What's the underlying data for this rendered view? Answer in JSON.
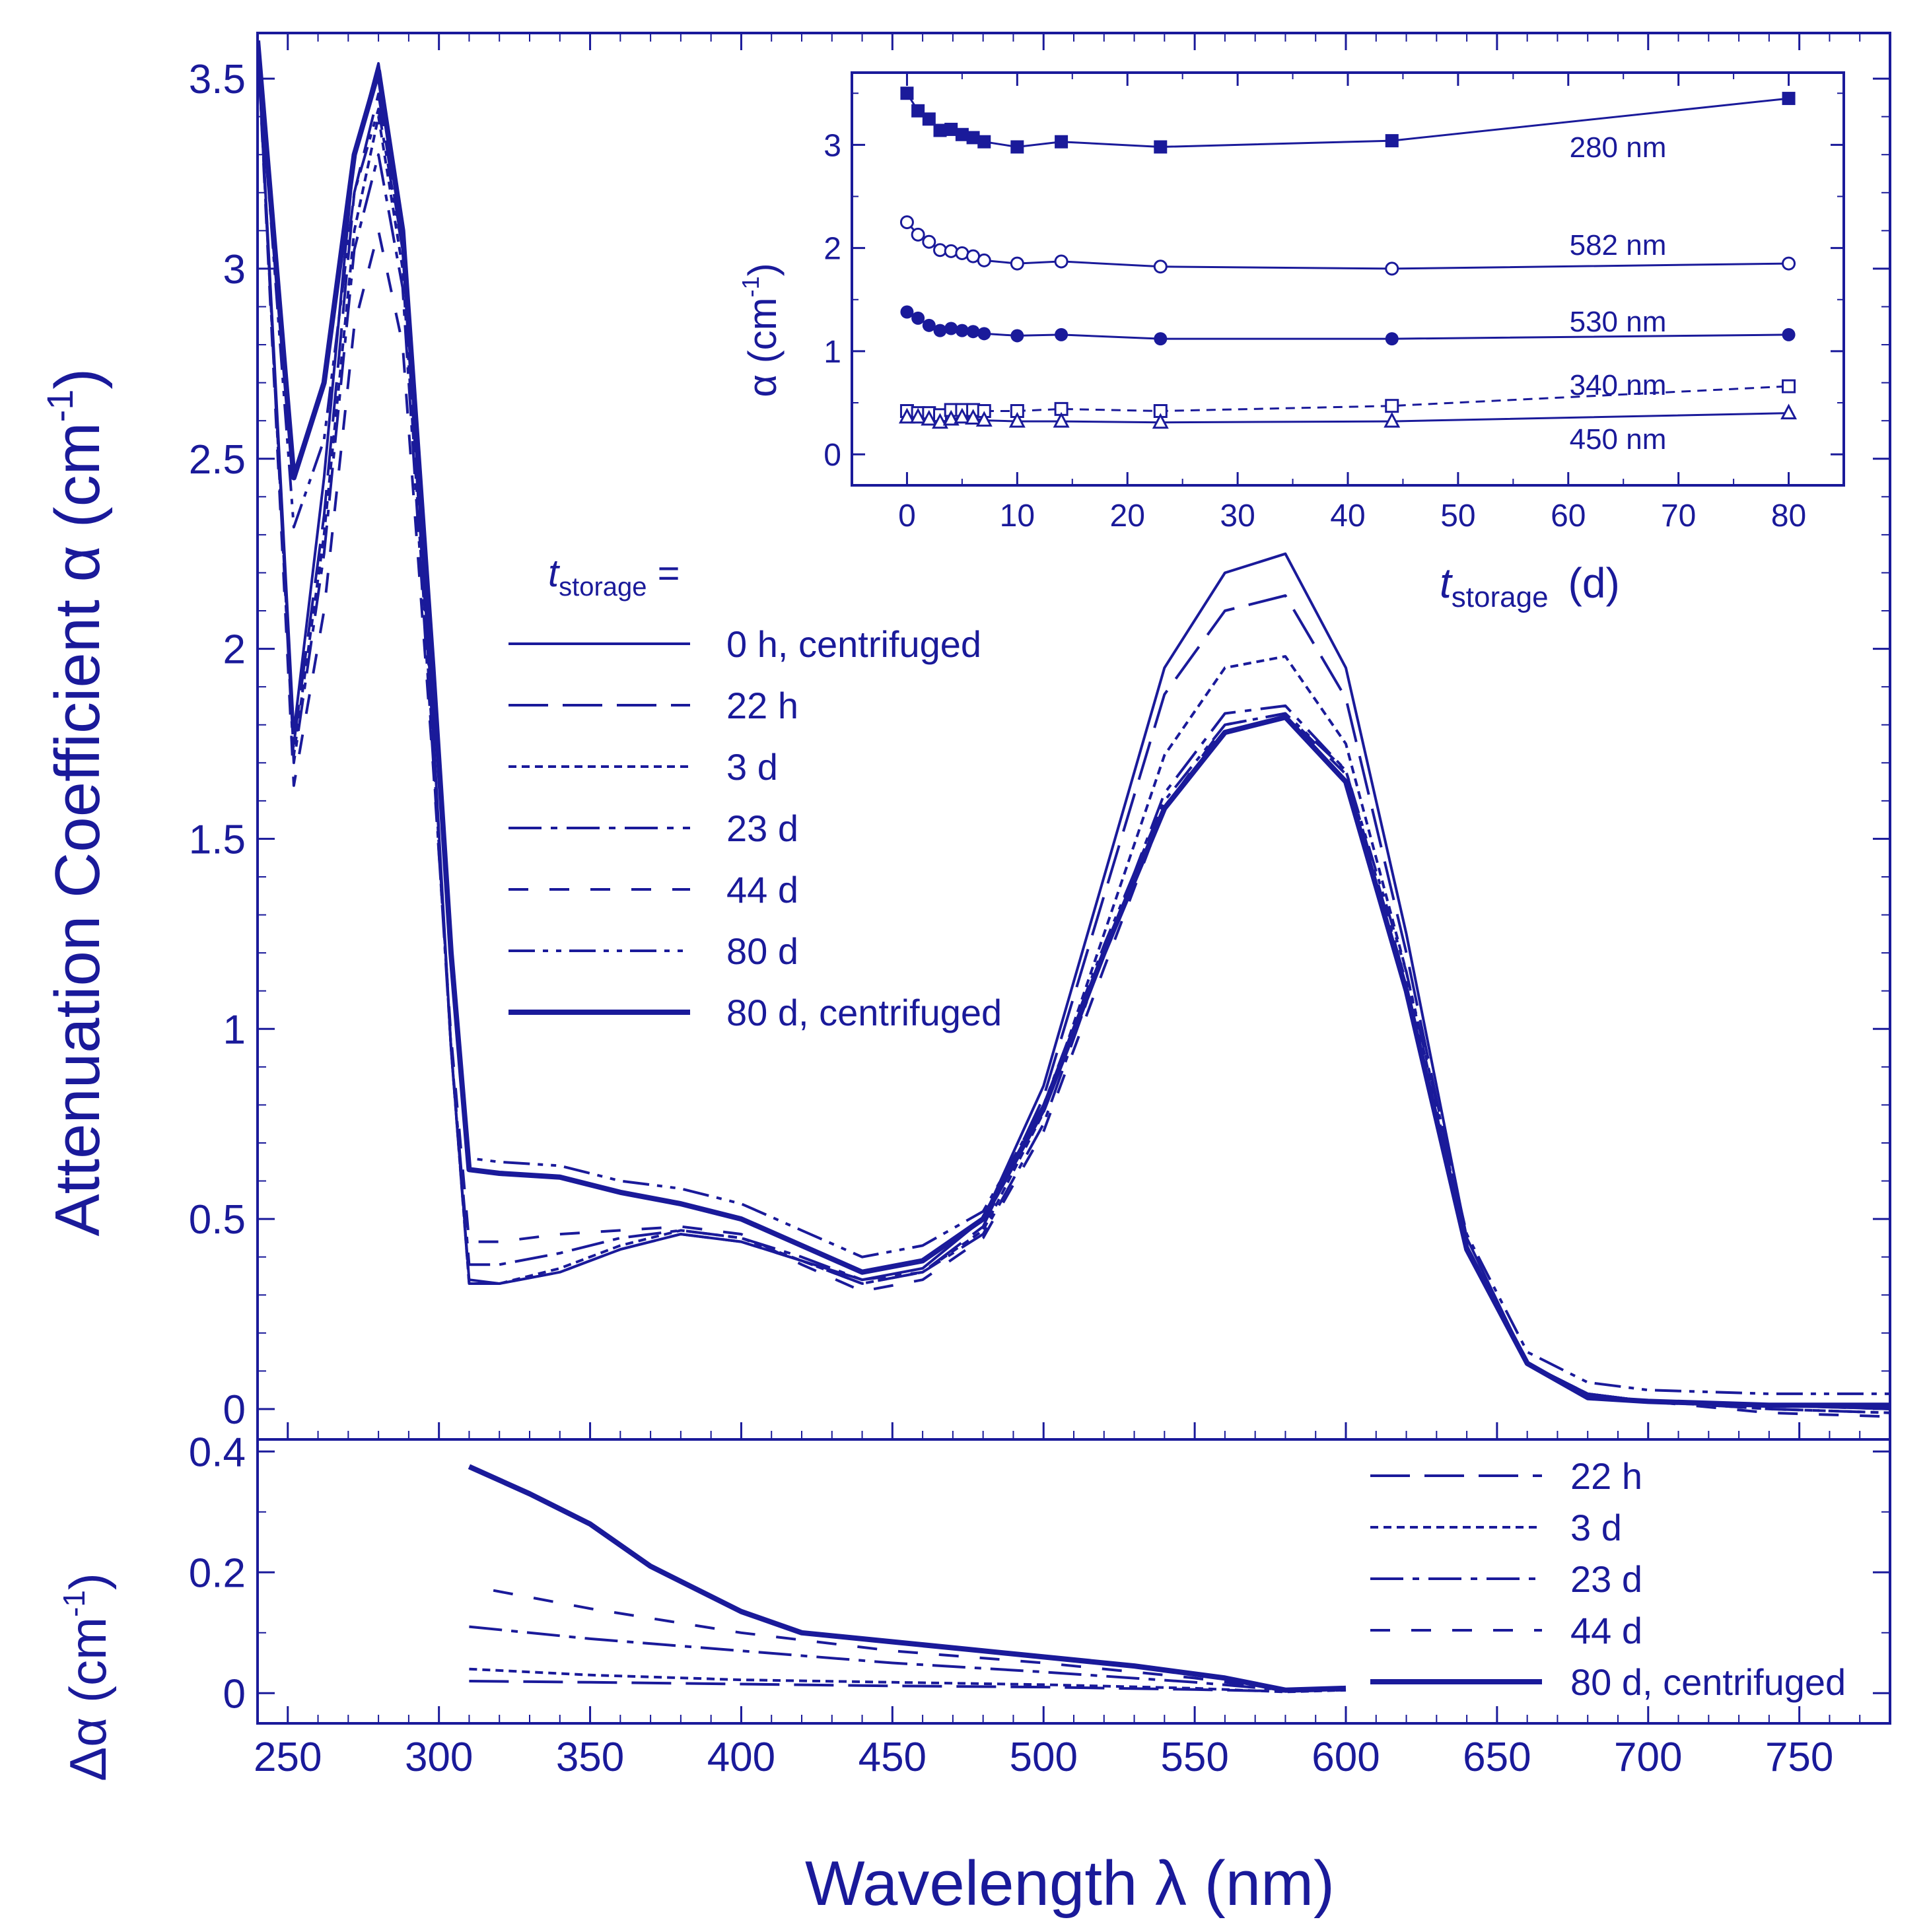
{
  "colors": {
    "ink": "#1a1a9a",
    "background": "#ffffff"
  },
  "chart_data": [
    {
      "id": "main",
      "type": "line",
      "xlabel": "Wavelength  λ  (nm)",
      "ylabel": "Attenuation Coefficient  α  (cm",
      "ylabel_sup": "-1",
      "ylabel_close": ")",
      "xlim": [
        240,
        780
      ],
      "ylim": [
        -0.08,
        3.62
      ],
      "xticks": [
        250,
        300,
        350,
        400,
        450,
        500,
        550,
        600,
        650,
        700,
        750
      ],
      "xtick_labels": [
        "250",
        "300",
        "350",
        "400",
        "450",
        "500",
        "550",
        "600",
        "650",
        "700",
        "750"
      ],
      "yticks": [
        0,
        0.5,
        1,
        1.5,
        2,
        2.5,
        3,
        3.5
      ],
      "ytick_labels": [
        "0",
        "0.5",
        "1",
        "1.5",
        "2",
        "2.5",
        "3",
        "3.5"
      ],
      "legend_title_main": "t",
      "legend_title_sub": "storage",
      "legend_title_eq": " =",
      "legend_position": "center",
      "series": [
        {
          "name": "0 h, centrifuged",
          "dash": "solid",
          "width": 4,
          "x": [
            240,
            252,
            262,
            272,
            280,
            288,
            298,
            304,
            310,
            320,
            340,
            360,
            380,
            400,
            420,
            440,
            460,
            480,
            500,
            520,
            540,
            560,
            580,
            600,
            620,
            640,
            660,
            680,
            700,
            740,
            780
          ],
          "y": [
            3.6,
            1.78,
            2.45,
            3.3,
            3.54,
            3.1,
            1.8,
            0.95,
            0.34,
            0.33,
            0.36,
            0.42,
            0.46,
            0.44,
            0.39,
            0.34,
            0.37,
            0.5,
            0.85,
            1.4,
            1.95,
            2.2,
            2.25,
            1.95,
            1.25,
            0.45,
            0.12,
            0.04,
            0.02,
            0.01,
            0.0
          ]
        },
        {
          "name": "22 h",
          "dash": "long-dash",
          "width": 4,
          "x": [
            240,
            252,
            262,
            272,
            280,
            288,
            298,
            304,
            310,
            320,
            340,
            360,
            380,
            400,
            420,
            440,
            460,
            480,
            500,
            520,
            540,
            560,
            580,
            600,
            620,
            640,
            660,
            680,
            700,
            740,
            780
          ],
          "y": [
            3.6,
            1.75,
            2.35,
            3.2,
            3.46,
            3.05,
            1.78,
            0.95,
            0.33,
            0.33,
            0.36,
            0.42,
            0.46,
            0.44,
            0.39,
            0.33,
            0.36,
            0.48,
            0.82,
            1.35,
            1.88,
            2.1,
            2.14,
            1.87,
            1.2,
            0.43,
            0.12,
            0.04,
            0.02,
            0.01,
            0.0
          ]
        },
        {
          "name": "3 d",
          "dash": "short-dash",
          "width": 4,
          "x": [
            240,
            252,
            262,
            272,
            280,
            288,
            298,
            304,
            310,
            320,
            340,
            360,
            380,
            400,
            420,
            440,
            460,
            480,
            500,
            520,
            540,
            560,
            580,
            600,
            620,
            640,
            660,
            680,
            700,
            740,
            780
          ],
          "y": [
            3.6,
            1.72,
            2.3,
            3.1,
            3.4,
            3.0,
            1.75,
            0.95,
            0.33,
            0.33,
            0.37,
            0.43,
            0.47,
            0.45,
            0.39,
            0.33,
            0.36,
            0.47,
            0.78,
            1.25,
            1.72,
            1.95,
            1.98,
            1.75,
            1.15,
            0.43,
            0.12,
            0.04,
            0.02,
            0.0,
            -0.01
          ]
        },
        {
          "name": "23 d",
          "dash": "dash-dot",
          "width": 4,
          "x": [
            240,
            252,
            262,
            272,
            280,
            288,
            298,
            304,
            310,
            320,
            340,
            360,
            380,
            400,
            420,
            440,
            460,
            480,
            500,
            520,
            540,
            560,
            580,
            600,
            620,
            640,
            660,
            680,
            700,
            740,
            780
          ],
          "y": [
            3.6,
            1.7,
            2.25,
            3.05,
            3.3,
            2.95,
            1.72,
            0.95,
            0.38,
            0.38,
            0.41,
            0.45,
            0.47,
            0.45,
            0.4,
            0.34,
            0.36,
            0.46,
            0.75,
            1.2,
            1.62,
            1.83,
            1.85,
            1.68,
            1.12,
            0.42,
            0.12,
            0.04,
            0.02,
            0.0,
            -0.01
          ]
        },
        {
          "name": "44 d",
          "dash": "wide-dash",
          "width": 4,
          "x": [
            240,
            252,
            262,
            272,
            280,
            288,
            298,
            304,
            310,
            320,
            340,
            360,
            380,
            400,
            420,
            440,
            460,
            480,
            500,
            520,
            540,
            560,
            580,
            600,
            620,
            640,
            660,
            680,
            700,
            740,
            780
          ],
          "y": [
            3.6,
            1.64,
            2.1,
            2.85,
            3.1,
            2.8,
            1.7,
            0.98,
            0.44,
            0.44,
            0.46,
            0.47,
            0.48,
            0.46,
            0.38,
            0.31,
            0.34,
            0.45,
            0.73,
            1.16,
            1.58,
            1.8,
            1.83,
            1.67,
            1.1,
            0.42,
            0.12,
            0.04,
            0.02,
            -0.01,
            -0.02
          ]
        },
        {
          "name": "80 d",
          "dash": "dash-dot-dot",
          "width": 4,
          "x": [
            240,
            252,
            262,
            272,
            280,
            288,
            298,
            304,
            310,
            320,
            340,
            360,
            380,
            400,
            420,
            440,
            460,
            480,
            500,
            520,
            540,
            560,
            580,
            600,
            620,
            640,
            660,
            680,
            700,
            740,
            780
          ],
          "y": [
            3.6,
            2.32,
            2.55,
            3.2,
            3.42,
            3.05,
            1.95,
            1.2,
            0.66,
            0.65,
            0.64,
            0.6,
            0.58,
            0.54,
            0.47,
            0.4,
            0.43,
            0.52,
            0.8,
            1.22,
            1.6,
            1.8,
            1.83,
            1.68,
            1.15,
            0.46,
            0.15,
            0.07,
            0.05,
            0.04,
            0.04
          ]
        },
        {
          "name": "80 d, centrifuged",
          "dash": "solid",
          "width": 8,
          "x": [
            240,
            252,
            262,
            272,
            280,
            288,
            298,
            304,
            310,
            320,
            340,
            360,
            380,
            400,
            420,
            440,
            460,
            480,
            500,
            520,
            540,
            560,
            580,
            600,
            620,
            640,
            660,
            680,
            700,
            740,
            780
          ],
          "y": [
            3.6,
            2.45,
            2.7,
            3.3,
            3.52,
            3.1,
            1.95,
            1.2,
            0.63,
            0.62,
            0.61,
            0.57,
            0.54,
            0.5,
            0.43,
            0.36,
            0.39,
            0.5,
            0.79,
            1.2,
            1.58,
            1.78,
            1.82,
            1.65,
            1.1,
            0.42,
            0.12,
            0.03,
            0.02,
            0.01,
            0.01
          ]
        }
      ]
    },
    {
      "id": "delta",
      "type": "line",
      "ylabel": "Δα  (cm",
      "ylabel_sup": "-1",
      "ylabel_close": ")",
      "xlim": [
        240,
        780
      ],
      "ylim": [
        -0.05,
        0.42
      ],
      "yticks": [
        0,
        0.2,
        0.4
      ],
      "ytick_labels": [
        "0",
        "0.2",
        "0.4"
      ],
      "legend_position": "top-right",
      "series": [
        {
          "name": "22 h",
          "dash": "long-dash",
          "width": 4,
          "x": [
            310,
            350,
            400,
            450,
            500,
            550,
            580,
            600
          ],
          "y": [
            0.02,
            0.018,
            0.015,
            0.012,
            0.01,
            0.006,
            0.003,
            0.005
          ]
        },
        {
          "name": "3 d",
          "dash": "short-dash",
          "width": 4,
          "x": [
            310,
            350,
            400,
            450,
            500,
            550,
            580,
            600
          ],
          "y": [
            0.04,
            0.03,
            0.022,
            0.018,
            0.014,
            0.008,
            0.002,
            0.005
          ]
        },
        {
          "name": "23 d",
          "dash": "dash-dot",
          "width": 4,
          "x": [
            310,
            350,
            400,
            450,
            500,
            550,
            580,
            600
          ],
          "y": [
            0.11,
            0.09,
            0.07,
            0.05,
            0.035,
            0.018,
            0.005,
            0.006
          ]
        },
        {
          "name": "44 d",
          "dash": "wide-dash",
          "width": 4,
          "x": [
            318,
            350,
            400,
            450,
            500,
            550,
            580,
            600
          ],
          "y": [
            0.17,
            0.14,
            0.1,
            0.07,
            0.05,
            0.025,
            0.005,
            0.006
          ]
        },
        {
          "name": "80 d, centrifuged",
          "dash": "solid",
          "width": 8,
          "x": [
            310,
            330,
            350,
            370,
            400,
            420,
            450,
            480,
            500,
            530,
            560,
            580,
            600
          ],
          "y": [
            0.375,
            0.33,
            0.28,
            0.21,
            0.135,
            0.1,
            0.085,
            0.07,
            0.06,
            0.045,
            0.025,
            0.005,
            0.008
          ]
        }
      ]
    },
    {
      "id": "inset",
      "type": "scatter",
      "xlabel_main": "t",
      "xlabel_sub": "storage",
      "xlabel_unit": "(d)",
      "ylabel": "α  (cm",
      "ylabel_sup": "-1",
      "ylabel_close": ")",
      "xlim": [
        -5,
        85
      ],
      "ylim": [
        -0.3,
        3.7
      ],
      "xticks": [
        0,
        10,
        20,
        30,
        40,
        50,
        60,
        70,
        80
      ],
      "xtick_labels": [
        "0",
        "10",
        "20",
        "30",
        "40",
        "50",
        "60",
        "70",
        "80"
      ],
      "yticks": [
        0,
        1,
        2,
        3
      ],
      "ytick_labels": [
        "0",
        "1",
        "2",
        "3"
      ],
      "series": [
        {
          "name": "280 nm",
          "marker": "filled-square",
          "line": "solid",
          "x": [
            0,
            1,
            2,
            3,
            4,
            5,
            6,
            7,
            10,
            14,
            23,
            44,
            80
          ],
          "y": [
            3.5,
            3.33,
            3.25,
            3.14,
            3.15,
            3.1,
            3.07,
            3.03,
            2.98,
            3.03,
            2.98,
            3.04,
            3.45
          ]
        },
        {
          "name": "582 nm",
          "marker": "open-circle",
          "line": "solid",
          "x": [
            0,
            1,
            2,
            3,
            4,
            5,
            6,
            7,
            10,
            14,
            23,
            44,
            80
          ],
          "y": [
            2.25,
            2.13,
            2.06,
            1.98,
            1.97,
            1.95,
            1.92,
            1.88,
            1.85,
            1.87,
            1.82,
            1.8,
            1.85
          ]
        },
        {
          "name": "530 nm",
          "marker": "filled-circle",
          "line": "solid",
          "x": [
            0,
            1,
            2,
            3,
            4,
            5,
            6,
            7,
            10,
            14,
            23,
            44,
            80
          ],
          "y": [
            1.38,
            1.32,
            1.25,
            1.2,
            1.22,
            1.2,
            1.19,
            1.17,
            1.15,
            1.16,
            1.12,
            1.12,
            1.16
          ]
        },
        {
          "name": "340 nm",
          "marker": "open-square",
          "line": "dashed",
          "x": [
            0,
            1,
            2,
            3,
            4,
            5,
            6,
            7,
            10,
            14,
            23,
            44,
            80
          ],
          "y": [
            0.42,
            0.4,
            0.4,
            0.38,
            0.43,
            0.43,
            0.43,
            0.42,
            0.42,
            0.44,
            0.42,
            0.47,
            0.66
          ]
        },
        {
          "name": "450 nm",
          "marker": "open-triangle",
          "line": "solid",
          "x": [
            0,
            1,
            2,
            3,
            4,
            5,
            6,
            7,
            10,
            14,
            23,
            44,
            80
          ],
          "y": [
            0.36,
            0.36,
            0.34,
            0.31,
            0.34,
            0.36,
            0.35,
            0.33,
            0.32,
            0.32,
            0.31,
            0.32,
            0.4
          ]
        }
      ]
    }
  ]
}
